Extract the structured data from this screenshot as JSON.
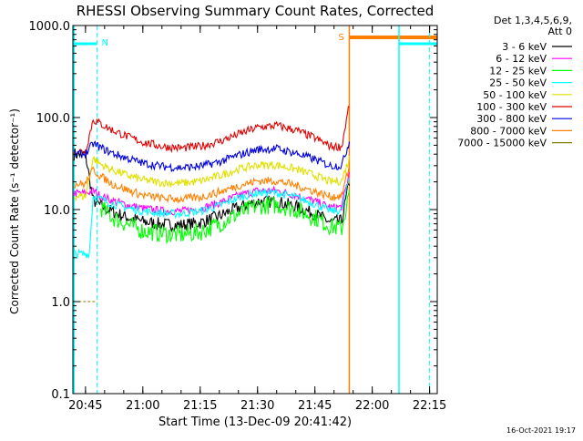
{
  "chart_data": {
    "type": "line",
    "title": "RHESSI Observing Summary Count Rates, Corrected",
    "xlabel": "Start Time (13-Dec-09 20:41:42)",
    "ylabel": "Corrected Count Rate (s⁻¹ detector⁻¹)",
    "y_scale": "log",
    "ylim": [
      0.1,
      1000
    ],
    "xlim": [
      "20:41:42",
      "22:17:00"
    ],
    "x_ticks": [
      "20:45",
      "21:00",
      "21:15",
      "21:30",
      "21:45",
      "22:00",
      "22:15"
    ],
    "y_ticks": [
      "0.1",
      "1.0",
      "10.0",
      "100.0",
      "1000.0"
    ],
    "legend_header": [
      "Det 1,3,4,5,6,9,",
      "Att 0"
    ],
    "legend_position": "right",
    "footer_date": "16-Oct-2021 19:17",
    "markers": [
      {
        "label": "N",
        "color": "#00ffff"
      },
      {
        "label": "S",
        "color": "#ff8000"
      }
    ],
    "series": [
      {
        "name": "3 - 6 keV",
        "color": "#000000",
        "x": [
          "20:42",
          "20:45",
          "20:47",
          "20:49",
          "20:52",
          "20:56",
          "21:00",
          "21:05",
          "21:10",
          "21:15",
          "21:20",
          "21:25",
          "21:30",
          "21:35",
          "21:40",
          "21:45",
          "21:49",
          "21:52",
          "21:54"
        ],
        "y": [
          40,
          40,
          12.5,
          11,
          9.5,
          8.2,
          7.4,
          6.9,
          6.8,
          7.2,
          8.5,
          10.5,
          12.2,
          12.2,
          10.8,
          9,
          7.3,
          7.5,
          20
        ]
      },
      {
        "name": "6 - 12 keV",
        "color": "#ff00ff",
        "x": [
          "20:42",
          "20:45",
          "20:47",
          "20:49",
          "20:52",
          "20:56",
          "21:00",
          "21:05",
          "21:10",
          "21:15",
          "21:20",
          "21:25",
          "21:30",
          "21:35",
          "21:40",
          "21:45",
          "21:49",
          "21:52",
          "21:54"
        ],
        "y": [
          15,
          15,
          16,
          14,
          12.5,
          11.2,
          10.3,
          9.7,
          9.6,
          10.2,
          11.8,
          14.2,
          16,
          16,
          14.3,
          12.3,
          10.5,
          10.7,
          25
        ]
      },
      {
        "name": "12 - 25 keV",
        "color": "#00ff00",
        "x": [
          "20:49",
          "20:52",
          "20:56",
          "21:00",
          "21:05",
          "21:10",
          "21:15",
          "21:20",
          "21:25",
          "21:30",
          "21:35",
          "21:40",
          "21:45",
          "21:49",
          "21:52",
          "21:54"
        ],
        "y": [
          10.5,
          8.2,
          6.9,
          5.9,
          5.5,
          5.3,
          5.7,
          7,
          9,
          11,
          11.2,
          10,
          8.2,
          6.6,
          6.2,
          15
        ]
      },
      {
        "name": "25 - 50 keV",
        "color": "#00ffff",
        "x": [
          "20:42",
          "20:45",
          "20:46",
          "20:47",
          "20:49",
          "20:52",
          "20:56",
          "21:00",
          "21:05",
          "21:10",
          "21:15",
          "21:20",
          "21:25",
          "21:30",
          "21:35",
          "21:40",
          "21:45",
          "21:49",
          "21:52",
          "21:54"
        ],
        "y": [
          3.3,
          3.3,
          3.3,
          14,
          13,
          11.6,
          10.4,
          9.6,
          9.1,
          9,
          9.6,
          11,
          13.5,
          15.2,
          15.2,
          13.6,
          11.5,
          9.7,
          9.7,
          22
        ]
      },
      {
        "name": "50 - 100 keV",
        "color": "#e0e000",
        "x": [
          "20:42",
          "20:45",
          "20:47",
          "20:49",
          "20:52",
          "20:56",
          "21:00",
          "21:05",
          "21:10",
          "21:15",
          "21:20",
          "21:25",
          "21:30",
          "21:35",
          "21:40",
          "21:45",
          "21:49",
          "21:52",
          "21:54"
        ],
        "y": [
          14,
          14,
          36,
          31,
          27,
          23.5,
          21,
          19.6,
          19.3,
          20.3,
          23.3,
          27.5,
          30.5,
          30.5,
          27.5,
          23.5,
          20,
          20.5,
          36
        ]
      },
      {
        "name": "100 - 300 keV",
        "color": "#e00000",
        "x": [
          "20:42",
          "20:45",
          "20:47",
          "20:49",
          "20:52",
          "20:56",
          "21:00",
          "21:05",
          "21:10",
          "21:15",
          "21:20",
          "21:25",
          "21:30",
          "21:35",
          "21:40",
          "21:45",
          "21:49",
          "21:52",
          "21:54"
        ],
        "y": [
          43,
          43,
          95,
          85,
          73,
          62,
          54,
          48.5,
          46.5,
          48.5,
          55,
          66,
          78,
          82,
          73,
          60,
          49,
          48,
          140
        ]
      },
      {
        "name": "300 - 800 keV",
        "color": "#0000e0",
        "x": [
          "20:42",
          "20:45",
          "20:47",
          "20:49",
          "20:52",
          "20:56",
          "21:00",
          "21:05",
          "21:10",
          "21:15",
          "21:20",
          "21:25",
          "21:30",
          "21:35",
          "21:40",
          "21:45",
          "21:49",
          "21:52",
          "21:54"
        ],
        "y": [
          40,
          40,
          52,
          47,
          41,
          36,
          32,
          29.5,
          28.5,
          29.5,
          33,
          39,
          45,
          46,
          41,
          35,
          30,
          30,
          55
        ]
      },
      {
        "name": "800 - 7000 keV",
        "color": "#ff8000",
        "x": [
          "20:42",
          "20:45",
          "20:47",
          "20:49",
          "20:52",
          "20:56",
          "21:00",
          "21:05",
          "21:10",
          "21:15",
          "21:20",
          "21:25",
          "21:30",
          "21:35",
          "21:40",
          "21:45",
          "21:49",
          "21:52",
          "21:54"
        ],
        "y": [
          19,
          19,
          27,
          23,
          19,
          16.3,
          14.3,
          13.3,
          13,
          13.6,
          15.5,
          18.2,
          20.5,
          20.5,
          18.3,
          15.7,
          13.8,
          14,
          30
        ]
      },
      {
        "name": "7000 - 15000 keV",
        "color": "#808000",
        "x": [
          "20:42",
          "20:48"
        ],
        "y": [
          1.0,
          1.0
        ]
      }
    ]
  }
}
